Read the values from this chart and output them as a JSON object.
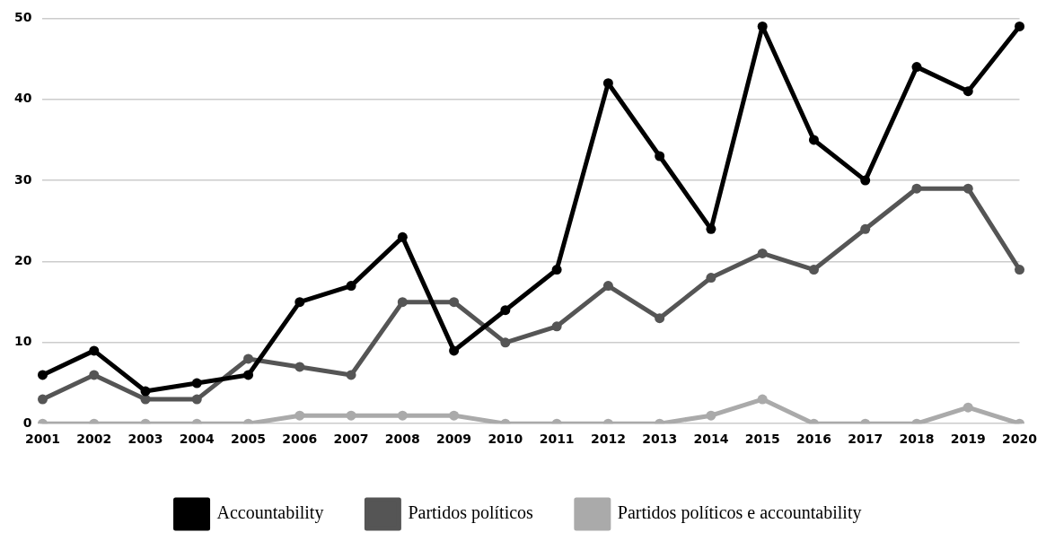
{
  "chart_data": {
    "type": "line",
    "categories": [
      "2001",
      "2002",
      "2003",
      "2004",
      "2005",
      "2006",
      "2007",
      "2008",
      "2009",
      "2010",
      "2011",
      "2012",
      "2013",
      "2014",
      "2015",
      "2016",
      "2017",
      "2018",
      "2019",
      "2020"
    ],
    "series": [
      {
        "name": "Accountability",
        "color": "#000000",
        "values": [
          6,
          9,
          4,
          5,
          6,
          15,
          17,
          23,
          9,
          14,
          19,
          42,
          33,
          24,
          49,
          35,
          30,
          44,
          41,
          49
        ]
      },
      {
        "name": "Partidos políticos",
        "color": "#555555",
        "values": [
          3,
          6,
          3,
          3,
          8,
          7,
          6,
          15,
          15,
          10,
          12,
          17,
          13,
          18,
          21,
          19,
          24,
          29,
          29,
          19
        ]
      },
      {
        "name": "Partidos políticos e accountability",
        "color": "#aaaaaa",
        "values": [
          0,
          0,
          0,
          0,
          0,
          1,
          1,
          1,
          1,
          0,
          0,
          0,
          0,
          1,
          3,
          0,
          0,
          0,
          2,
          0
        ]
      }
    ],
    "ylim": [
      0,
      50
    ],
    "yticks": [
      0,
      10,
      20,
      30,
      40,
      50
    ],
    "grid": "y",
    "legend": "bottom",
    "marker": "circle",
    "line_style": "solid"
  }
}
